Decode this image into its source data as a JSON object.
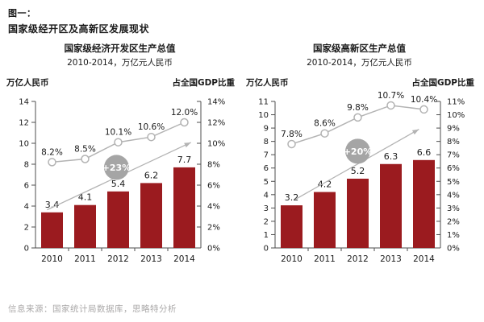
{
  "header": {
    "figure_label": "图一：",
    "title": "国家级经开区及高新区发展现状"
  },
  "footer": {
    "source": "信息来源：国家统计局数据库，思略特分析"
  },
  "colors": {
    "bar": "#9B1B1F",
    "line": "#b3b3b3",
    "marker_fill": "#ffffff",
    "badge": "#a5a5a5",
    "badge_text": "#ffffff",
    "arrow": "#b3b3b3",
    "axis": "#4d4d4d",
    "text": "#1a1a1a",
    "source_text": "#aba9a9"
  },
  "chart_data": [
    {
      "type": "bar",
      "title": "国家级经济开发区生产总值",
      "subtitle": "2010-2014，万亿元人民币",
      "left_axis_label": "万亿人民币",
      "right_axis_label": "占全国GDP比重",
      "categories": [
        "2010",
        "2011",
        "2012",
        "2013",
        "2014"
      ],
      "series": [
        {
          "type": "bar",
          "axis": "left",
          "values": [
            3.4,
            4.1,
            5.4,
            6.2,
            7.7
          ],
          "labels": [
            "3.4",
            "4.1",
            "5.4",
            "6.2",
            "7.7"
          ]
        },
        {
          "type": "line",
          "axis": "right",
          "values": [
            8.2,
            8.5,
            10.1,
            10.6,
            12.0
          ],
          "labels": [
            "8.2%",
            "8.5%",
            "10.1%",
            "10.6%",
            "12.0%"
          ]
        }
      ],
      "left_axis": {
        "min": 0,
        "max": 14,
        "step": 2,
        "suffix": ""
      },
      "right_axis": {
        "min": 0,
        "max": 14,
        "step": 2,
        "suffix": "%"
      },
      "grid": false,
      "legend": "none",
      "annotations": {
        "arrow": {
          "x1": 0.07,
          "y1": 0.26,
          "x2": 0.94,
          "y2": 0.72
        },
        "badge": {
          "label": "+23%",
          "x": 0.49,
          "y": 0.55
        }
      }
    },
    {
      "type": "bar",
      "title": "国家级高新区生产总值",
      "subtitle": "2010-2014，万亿元人民币",
      "left_axis_label": "万亿人民币",
      "right_axis_label": "占全国GDP比重",
      "categories": [
        "2010",
        "2011",
        "2012",
        "2013",
        "2014"
      ],
      "series": [
        {
          "type": "bar",
          "axis": "left",
          "values": [
            3.2,
            4.2,
            5.2,
            6.3,
            6.6
          ],
          "labels": [
            "3.2",
            "4.2",
            "5.2",
            "6.3",
            "6.6"
          ]
        },
        {
          "type": "line",
          "axis": "right",
          "values": [
            7.8,
            8.6,
            9.8,
            10.7,
            10.4
          ],
          "labels": [
            "7.8%",
            "8.6%",
            "9.8%",
            "10.7%",
            "10.4%"
          ]
        }
      ],
      "left_axis": {
        "min": 0,
        "max": 11,
        "step": 1,
        "suffix": ""
      },
      "right_axis": {
        "min": 0,
        "max": 11,
        "step": 1,
        "suffix": "%"
      },
      "grid": false,
      "legend": "none",
      "annotations": {
        "arrow": {
          "x1": 0.12,
          "y1": 0.33,
          "x2": 0.87,
          "y2": 0.81
        },
        "badge": {
          "label": "+20%",
          "x": 0.5,
          "y": 0.66
        }
      }
    }
  ]
}
